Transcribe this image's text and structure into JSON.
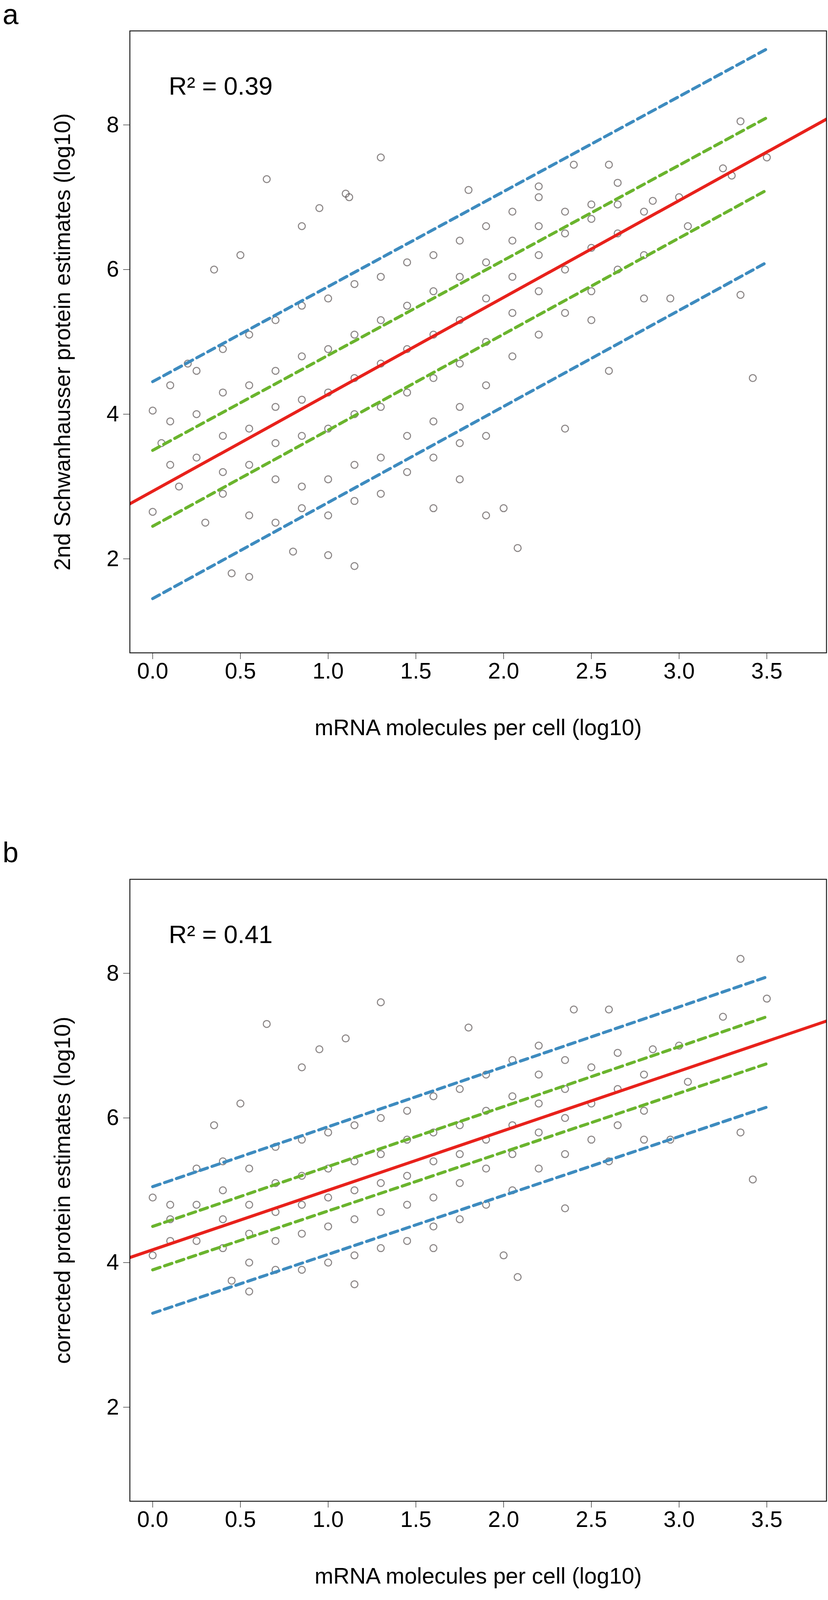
{
  "chart_data": [
    {
      "type": "scatter",
      "title": "a",
      "annotation": "R² = 0.39",
      "xlabel": "mRNA molecules per cell (log10)",
      "ylabel": "2nd Schwanhausser protein estimates (log10)",
      "xlim": [
        -0.13,
        3.84
      ],
      "xticks": [
        {
          "value": 0,
          "label": "0.0"
        },
        0.5,
        {
          "value": 1,
          "label": "1.0"
        },
        1.5,
        {
          "value": 2,
          "label": "2.0"
        },
        2.5,
        {
          "value": 3,
          "label": "3.0"
        },
        3.5
      ],
      "ylim": [
        0.7,
        9.3
      ],
      "yticks": [
        2,
        4,
        6,
        8
      ],
      "series": [
        {
          "type": "scatter",
          "marker": "circle",
          "color": "#2b2323",
          "x": [
            0.0,
            0.0,
            0.05,
            0.1,
            0.2,
            0.35,
            0.5,
            0.65,
            0.45,
            0.55,
            0.85,
            0.95,
            1.1,
            1.12,
            1.3,
            1.15,
            1.8,
            2.0,
            2.08,
            2.4,
            2.6,
            2.35,
            2.6,
            2.8,
            2.95,
            3.0,
            3.35,
            3.35,
            3.42,
            3.5,
            3.25,
            3.05,
            2.65,
            2.2,
            1.9,
            1.75,
            1.0,
            0.8,
            0.3,
            0.15,
            1.6,
            2.85,
            3.3,
            2.5,
            2.5,
            0.1,
            0.1,
            0.25,
            0.25,
            0.25,
            0.4,
            0.4,
            0.4,
            0.4,
            0.4,
            0.55,
            0.55,
            0.55,
            0.55,
            0.55,
            0.7,
            0.7,
            0.7,
            0.7,
            0.7,
            0.7,
            0.85,
            0.85,
            0.85,
            0.85,
            0.85,
            0.85,
            1.0,
            1.0,
            1.0,
            1.0,
            1.0,
            1.0,
            1.15,
            1.15,
            1.15,
            1.15,
            1.15,
            1.15,
            1.3,
            1.3,
            1.3,
            1.3,
            1.3,
            1.3,
            1.45,
            1.45,
            1.45,
            1.45,
            1.45,
            1.45,
            1.6,
            1.6,
            1.6,
            1.6,
            1.6,
            1.6,
            1.75,
            1.75,
            1.75,
            1.75,
            1.75,
            1.75,
            1.9,
            1.9,
            1.9,
            1.9,
            1.9,
            1.9,
            2.05,
            2.05,
            2.05,
            2.05,
            2.05,
            2.2,
            2.2,
            2.2,
            2.2,
            2.2,
            2.35,
            2.35,
            2.35,
            2.35,
            2.5,
            2.5,
            2.5,
            2.65,
            2.65,
            2.65,
            2.8,
            2.8
          ],
          "values": [
            4.05,
            2.65,
            3.6,
            4.4,
            4.7,
            6.0,
            6.2,
            7.25,
            1.8,
            1.75,
            6.6,
            6.85,
            7.05,
            7.0,
            7.55,
            1.9,
            7.1,
            2.7,
            2.15,
            7.45,
            7.45,
            3.8,
            4.6,
            5.6,
            5.6,
            7.0,
            8.05,
            5.65,
            4.5,
            7.55,
            7.4,
            6.6,
            7.2,
            7.15,
            2.6,
            3.1,
            2.05,
            2.1,
            2.5,
            3.0,
            2.7,
            6.95,
            7.3,
            5.3,
            6.9,
            3.3,
            3.9,
            3.4,
            4.0,
            4.6,
            2.9,
            3.2,
            3.7,
            4.3,
            4.9,
            2.6,
            3.3,
            3.8,
            4.4,
            5.1,
            2.5,
            3.1,
            3.6,
            4.1,
            4.6,
            5.3,
            2.7,
            3.0,
            3.7,
            4.2,
            4.8,
            5.5,
            2.6,
            3.1,
            3.8,
            4.3,
            4.9,
            5.6,
            2.8,
            3.3,
            4.0,
            4.5,
            5.1,
            5.8,
            2.9,
            3.4,
            4.1,
            4.7,
            5.3,
            5.9,
            3.2,
            3.7,
            4.3,
            4.9,
            5.5,
            6.1,
            3.4,
            3.9,
            4.5,
            5.1,
            5.7,
            6.2,
            3.6,
            4.1,
            4.7,
            5.3,
            5.9,
            6.4,
            3.7,
            4.4,
            5.0,
            5.6,
            6.1,
            6.6,
            4.8,
            5.4,
            5.9,
            6.4,
            6.8,
            5.1,
            5.7,
            6.2,
            6.6,
            7.0,
            5.4,
            6.0,
            6.5,
            6.8,
            5.7,
            6.3,
            6.7,
            6.0,
            6.5,
            6.9,
            6.2,
            6.8
          ]
        },
        {
          "type": "line",
          "line_style": "dashed",
          "color": "#3d8bbf",
          "x": [
            0,
            3.5
          ],
          "values": [
            4.45,
            9.05
          ]
        },
        {
          "type": "line",
          "line_style": "dashed",
          "color": "#6ab42d",
          "x": [
            0,
            3.5
          ],
          "values": [
            3.5,
            8.1
          ]
        },
        {
          "type": "line",
          "line_style": "dashed",
          "color": "#6ab42d",
          "x": [
            0,
            3.5
          ],
          "values": [
            2.45,
            7.1
          ]
        },
        {
          "type": "line",
          "line_style": "dashed",
          "color": "#3d8bbf",
          "x": [
            0,
            3.5
          ],
          "values": [
            1.45,
            6.1
          ]
        },
        {
          "type": "line",
          "line_style": "solid",
          "color": "#e8211b",
          "x": [
            -0.13,
            3.84
          ],
          "values": [
            2.76,
            8.08
          ]
        }
      ]
    },
    {
      "type": "scatter",
      "title": "b",
      "annotation": "R² = 0.41",
      "xlabel": "mRNA molecules per cell (log10)",
      "ylabel": "corrected protein estimates (log10)",
      "xlim": [
        -0.13,
        3.84
      ],
      "xticks": [
        {
          "value": 0,
          "label": "0.0"
        },
        0.5,
        {
          "value": 1,
          "label": "1.0"
        },
        1.5,
        {
          "value": 2,
          "label": "2.0"
        },
        2.5,
        {
          "value": 3,
          "label": "3.0"
        },
        3.5
      ],
      "ylim": [
        0.7,
        9.3
      ],
      "yticks": [
        2,
        4,
        6,
        8
      ],
      "series": [
        {
          "type": "scatter",
          "marker": "circle",
          "color": "#2b2323",
          "x": [
            0.0,
            0.0,
            0.1,
            0.35,
            0.5,
            0.65,
            0.85,
            0.95,
            1.1,
            1.3,
            1.8,
            2.4,
            2.6,
            3.35,
            3.5,
            3.35,
            3.42,
            3.0,
            3.25,
            2.85,
            2.6,
            2.35,
            2.08,
            2.0,
            1.15,
            0.55,
            0.45,
            1.6,
            2.95,
            3.05,
            2.8,
            0.1,
            0.1,
            0.25,
            0.25,
            0.25,
            0.4,
            0.4,
            0.4,
            0.4,
            0.55,
            0.55,
            0.55,
            0.55,
            0.7,
            0.7,
            0.7,
            0.7,
            0.7,
            0.85,
            0.85,
            0.85,
            0.85,
            0.85,
            1.0,
            1.0,
            1.0,
            1.0,
            1.0,
            1.15,
            1.15,
            1.15,
            1.15,
            1.15,
            1.3,
            1.3,
            1.3,
            1.3,
            1.3,
            1.45,
            1.45,
            1.45,
            1.45,
            1.45,
            1.6,
            1.6,
            1.6,
            1.6,
            1.6,
            1.75,
            1.75,
            1.75,
            1.75,
            1.75,
            1.9,
            1.9,
            1.9,
            1.9,
            1.9,
            2.05,
            2.05,
            2.05,
            2.05,
            2.05,
            2.2,
            2.2,
            2.2,
            2.2,
            2.2,
            2.35,
            2.35,
            2.35,
            2.35,
            2.5,
            2.5,
            2.5,
            2.65,
            2.65,
            2.65,
            2.8,
            2.8
          ],
          "values": [
            4.9,
            4.1,
            4.6,
            5.9,
            6.2,
            7.3,
            6.7,
            6.95,
            7.1,
            7.6,
            7.25,
            7.5,
            7.5,
            8.2,
            7.65,
            5.8,
            5.15,
            7.0,
            7.4,
            6.95,
            5.4,
            4.75,
            3.8,
            4.1,
            3.7,
            3.6,
            3.75,
            4.2,
            5.7,
            6.5,
            5.7,
            4.3,
            4.8,
            4.3,
            4.8,
            5.3,
            4.2,
            4.6,
            5.0,
            5.4,
            4.0,
            4.4,
            4.8,
            5.3,
            3.9,
            4.3,
            4.7,
            5.1,
            5.6,
            3.9,
            4.4,
            4.8,
            5.2,
            5.7,
            4.0,
            4.5,
            4.9,
            5.3,
            5.8,
            4.1,
            4.6,
            5.0,
            5.4,
            5.9,
            4.2,
            4.7,
            5.1,
            5.5,
            6.0,
            4.3,
            4.8,
            5.2,
            5.7,
            6.1,
            4.5,
            4.9,
            5.4,
            5.8,
            6.3,
            4.6,
            5.1,
            5.5,
            5.9,
            6.4,
            4.8,
            5.3,
            5.7,
            6.1,
            6.6,
            5.0,
            5.5,
            5.9,
            6.3,
            6.8,
            5.3,
            5.8,
            6.2,
            6.6,
            7.0,
            5.5,
            6.0,
            6.4,
            6.8,
            5.7,
            6.2,
            6.7,
            5.9,
            6.4,
            6.9,
            6.1,
            6.6
          ]
        },
        {
          "type": "line",
          "line_style": "dashed",
          "color": "#3d8bbf",
          "x": [
            0,
            3.5
          ],
          "values": [
            5.05,
            7.95
          ]
        },
        {
          "type": "line",
          "line_style": "dashed",
          "color": "#6ab42d",
          "x": [
            0,
            3.5
          ],
          "values": [
            4.5,
            7.4
          ]
        },
        {
          "type": "line",
          "line_style": "dashed",
          "color": "#6ab42d",
          "x": [
            0,
            3.5
          ],
          "values": [
            3.9,
            6.75
          ]
        },
        {
          "type": "line",
          "line_style": "dashed",
          "color": "#3d8bbf",
          "x": [
            0,
            3.5
          ],
          "values": [
            3.3,
            6.15
          ]
        },
        {
          "type": "line",
          "line_style": "solid",
          "color": "#e8211b",
          "x": [
            -0.13,
            3.84
          ],
          "values": [
            4.07,
            7.34
          ]
        }
      ]
    }
  ]
}
